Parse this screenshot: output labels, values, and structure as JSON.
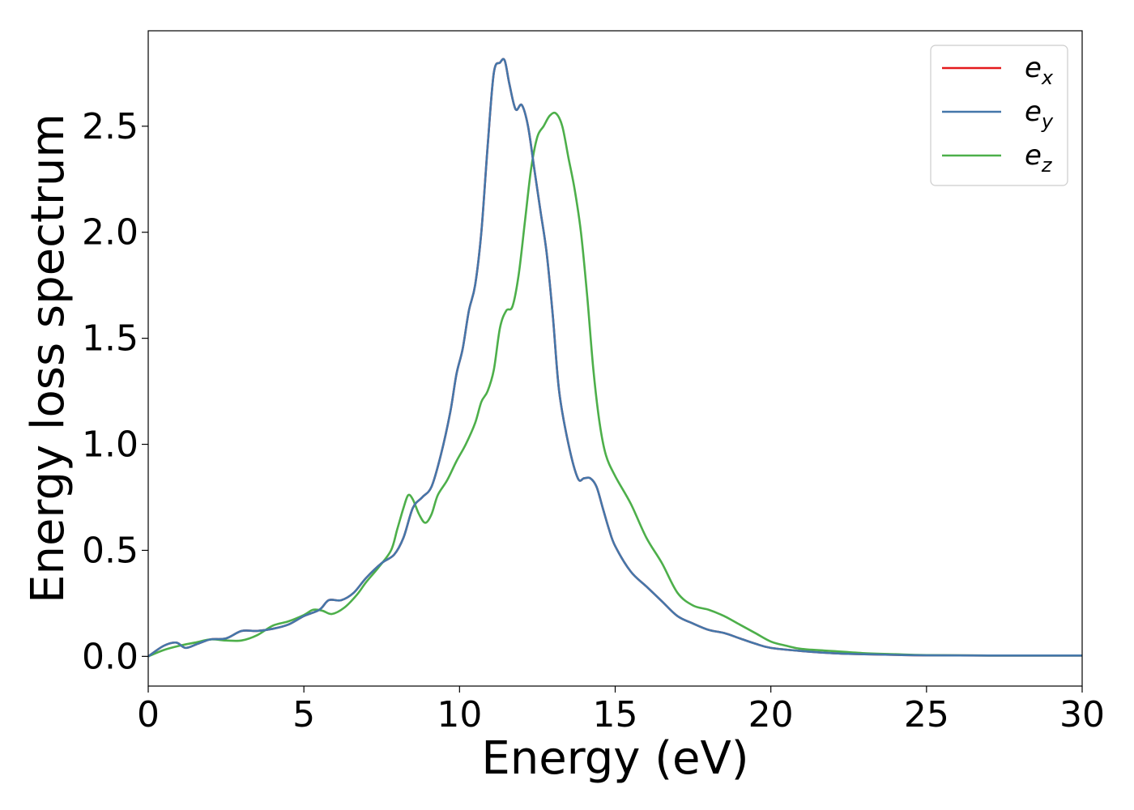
{
  "chart_data": {
    "type": "line",
    "title": "",
    "xlabel": "Energy (eV)",
    "ylabel": "Energy loss spectrum",
    "xlim": [
      0,
      30
    ],
    "ylim": [
      -0.14,
      2.95
    ],
    "xticks": [
      "0",
      "5",
      "10",
      "15",
      "20",
      "25",
      "30"
    ],
    "yticks": [
      "0.0",
      "0.5",
      "1.0",
      "1.5",
      "2.0",
      "2.5"
    ],
    "grid": false,
    "legend_position": "top-right",
    "series": [
      {
        "name": "e",
        "subscript": "x",
        "color": "#e41a1c",
        "x": [
          0,
          0.5,
          0.9,
          1.2,
          1.6,
          2.0,
          2.5,
          3.0,
          3.5,
          4.0,
          4.5,
          5.0,
          5.5,
          5.8,
          6.2,
          6.6,
          7.0,
          7.5,
          7.9,
          8.2,
          8.5,
          8.8,
          9.1,
          9.4,
          9.7,
          9.9,
          10.1,
          10.3,
          10.5,
          10.7,
          10.9,
          11.1,
          11.3,
          11.45,
          11.6,
          11.8,
          12.0,
          12.2,
          12.4,
          12.6,
          12.8,
          13.0,
          13.2,
          13.5,
          13.8,
          14.0,
          14.2,
          14.4,
          14.6,
          14.8,
          15.0,
          15.5,
          16.0,
          16.5,
          17.0,
          17.5,
          18.0,
          18.5,
          19.0,
          19.5,
          20.0,
          21.0,
          22.0,
          23.0,
          24.0,
          25.0,
          27.0,
          30.0
        ],
        "y": [
          0.0,
          0.05,
          0.065,
          0.04,
          0.06,
          0.08,
          0.085,
          0.12,
          0.12,
          0.13,
          0.15,
          0.19,
          0.22,
          0.265,
          0.265,
          0.3,
          0.37,
          0.44,
          0.48,
          0.56,
          0.7,
          0.75,
          0.8,
          0.95,
          1.15,
          1.33,
          1.45,
          1.63,
          1.75,
          2.0,
          2.4,
          2.75,
          2.8,
          2.81,
          2.7,
          2.58,
          2.6,
          2.5,
          2.3,
          2.1,
          1.9,
          1.6,
          1.25,
          1.0,
          0.84,
          0.84,
          0.84,
          0.8,
          0.7,
          0.6,
          0.52,
          0.4,
          0.33,
          0.26,
          0.19,
          0.155,
          0.125,
          0.11,
          0.085,
          0.06,
          0.04,
          0.025,
          0.015,
          0.01,
          0.007,
          0.005,
          0.004,
          0.004
        ]
      },
      {
        "name": "e",
        "subscript": "y",
        "color": "#4477aa",
        "x": [
          0,
          0.5,
          0.9,
          1.2,
          1.6,
          2.0,
          2.5,
          3.0,
          3.5,
          4.0,
          4.5,
          5.0,
          5.5,
          5.8,
          6.2,
          6.6,
          7.0,
          7.5,
          7.9,
          8.2,
          8.5,
          8.8,
          9.1,
          9.4,
          9.7,
          9.9,
          10.1,
          10.3,
          10.5,
          10.7,
          10.9,
          11.1,
          11.3,
          11.45,
          11.6,
          11.8,
          12.0,
          12.2,
          12.4,
          12.6,
          12.8,
          13.0,
          13.2,
          13.5,
          13.8,
          14.0,
          14.2,
          14.4,
          14.6,
          14.8,
          15.0,
          15.5,
          16.0,
          16.5,
          17.0,
          17.5,
          18.0,
          18.5,
          19.0,
          19.5,
          20.0,
          21.0,
          22.0,
          23.0,
          24.0,
          25.0,
          27.0,
          30.0
        ],
        "y": [
          0.0,
          0.05,
          0.065,
          0.04,
          0.06,
          0.08,
          0.085,
          0.12,
          0.12,
          0.13,
          0.15,
          0.19,
          0.22,
          0.265,
          0.265,
          0.3,
          0.37,
          0.44,
          0.48,
          0.56,
          0.7,
          0.75,
          0.8,
          0.95,
          1.15,
          1.33,
          1.45,
          1.63,
          1.75,
          2.0,
          2.4,
          2.75,
          2.8,
          2.81,
          2.7,
          2.58,
          2.6,
          2.5,
          2.3,
          2.1,
          1.9,
          1.6,
          1.25,
          1.0,
          0.84,
          0.84,
          0.84,
          0.8,
          0.7,
          0.6,
          0.52,
          0.4,
          0.33,
          0.26,
          0.19,
          0.155,
          0.125,
          0.11,
          0.085,
          0.06,
          0.04,
          0.025,
          0.015,
          0.01,
          0.007,
          0.005,
          0.004,
          0.004
        ]
      },
      {
        "name": "e",
        "subscript": "z",
        "color": "#4daf4a",
        "x": [
          0,
          0.5,
          1.0,
          1.5,
          2.0,
          2.5,
          3.0,
          3.5,
          4.0,
          4.5,
          5.0,
          5.3,
          5.6,
          5.9,
          6.3,
          6.7,
          7.0,
          7.4,
          7.8,
          8.0,
          8.2,
          8.35,
          8.5,
          8.7,
          8.9,
          9.1,
          9.3,
          9.6,
          9.9,
          10.2,
          10.5,
          10.7,
          10.9,
          11.1,
          11.3,
          11.5,
          11.7,
          11.9,
          12.1,
          12.3,
          12.5,
          12.7,
          12.9,
          13.1,
          13.3,
          13.5,
          13.7,
          13.9,
          14.1,
          14.3,
          14.5,
          14.7,
          15.0,
          15.5,
          16.0,
          16.5,
          17.0,
          17.5,
          18.0,
          18.5,
          19.0,
          19.5,
          20.0,
          20.5,
          21.0,
          22.0,
          23.0,
          24.0,
          25.0,
          27.0,
          30.0
        ],
        "y": [
          0.0,
          0.03,
          0.05,
          0.065,
          0.08,
          0.075,
          0.075,
          0.1,
          0.145,
          0.165,
          0.195,
          0.22,
          0.215,
          0.2,
          0.23,
          0.29,
          0.35,
          0.42,
          0.5,
          0.6,
          0.7,
          0.76,
          0.74,
          0.67,
          0.63,
          0.67,
          0.76,
          0.83,
          0.92,
          1.0,
          1.1,
          1.2,
          1.25,
          1.35,
          1.55,
          1.63,
          1.65,
          1.8,
          2.05,
          2.3,
          2.45,
          2.5,
          2.55,
          2.56,
          2.5,
          2.35,
          2.2,
          2.0,
          1.7,
          1.35,
          1.1,
          0.95,
          0.85,
          0.72,
          0.56,
          0.44,
          0.3,
          0.24,
          0.22,
          0.19,
          0.15,
          0.11,
          0.07,
          0.05,
          0.035,
          0.025,
          0.015,
          0.01,
          0.006,
          0.004,
          0.004
        ]
      }
    ]
  }
}
